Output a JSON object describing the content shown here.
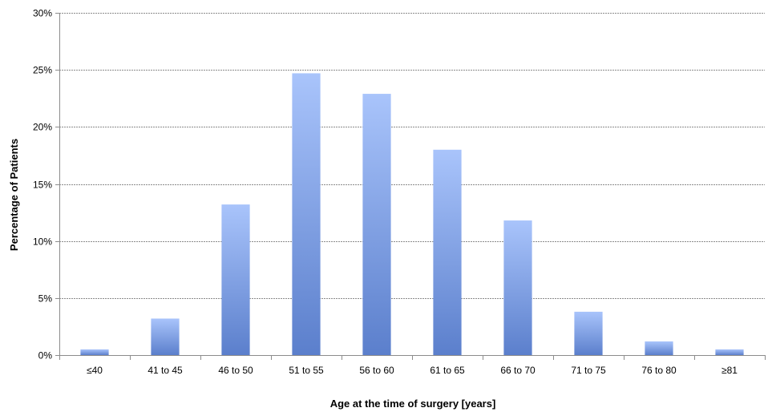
{
  "chart_data": {
    "type": "bar",
    "title": "",
    "xlabel": "Age at the time of surgery [years]",
    "ylabel": "Percentage of Patients",
    "categories": [
      "≤40",
      "41 to 45",
      "46 to 50",
      "51 to 55",
      "56 to 60",
      "61 to 65",
      "66 to 70",
      "71 to 75",
      "76 to 80",
      "≥81"
    ],
    "values": [
      0.5,
      3.2,
      13.2,
      24.7,
      22.9,
      18.0,
      11.8,
      3.8,
      1.2,
      0.5
    ],
    "value_unit": "%",
    "ylim": [
      0,
      30
    ],
    "yticks": [
      0,
      5,
      10,
      15,
      20,
      25,
      30
    ],
    "ytick_labels": [
      "0%",
      "5%",
      "10%",
      "15%",
      "20%",
      "25%",
      "30%"
    ],
    "grid": "horizontal",
    "legend": "none",
    "colors": {
      "bar_top": "#a9c4fb",
      "bar_bottom": "#5b7fcc",
      "grid": "#8c8c8c",
      "axis": "#8c8c8c"
    }
  }
}
